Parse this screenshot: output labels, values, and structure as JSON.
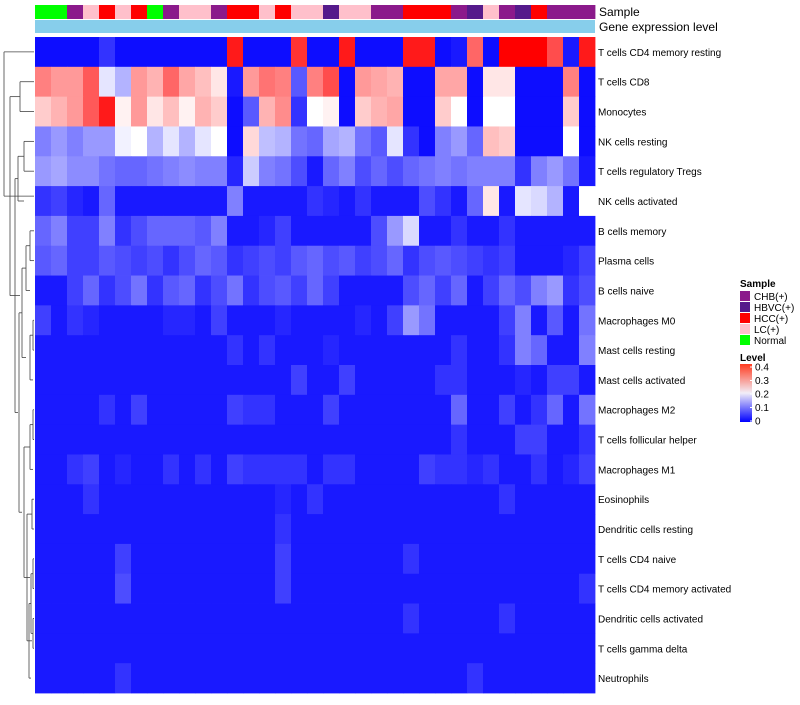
{
  "chart_data": {
    "type": "heatmap",
    "title": "",
    "annotation_tracks": [
      "Sample",
      "Gene expression level"
    ],
    "sample_groups": [
      {
        "name": "CHB(+)",
        "color": "#8b1a8b"
      },
      {
        "name": "HBVC(+)",
        "color": "#551a8b"
      },
      {
        "name": "HCC(+)",
        "color": "#ff0000"
      },
      {
        "name": "LC(+)",
        "color": "#ffc0cb"
      },
      {
        "name": "Normal",
        "color": "#00ff00"
      }
    ],
    "sample_legend_title": "Sample",
    "level_legend_title": "Level",
    "level_ticks": [
      "0.4",
      "0.3",
      "0.2",
      "0.1",
      "0"
    ],
    "color_scale": {
      "min": 0,
      "max": 0.4,
      "low": "#0000ff",
      "mid": "#ffffff",
      "high": "#ff0000"
    },
    "column_samples": [
      "Normal",
      "Normal",
      "CHB(+)",
      "LC(+)",
      "HCC(+)",
      "LC(+)",
      "HCC(+)",
      "Normal",
      "CHB(+)",
      "LC(+)",
      "LC(+)",
      "CHB(+)",
      "HCC(+)",
      "HCC(+)",
      "LC(+)",
      "HCC(+)",
      "LC(+)",
      "LC(+)",
      "HBVC(+)",
      "LC(+)",
      "LC(+)",
      "CHB(+)",
      "CHB(+)",
      "HCC(+)",
      "HCC(+)",
      "HCC(+)",
      "CHB(+)",
      "HBVC(+)",
      "LC(+)",
      "CHB(+)",
      "HBVC(+)",
      "HCC(+)",
      "CHB(+)",
      "CHB(+)",
      "CHB(+)"
    ],
    "gene_expression_track_color": "#87ceeb",
    "rows": [
      "T cells CD4 memory resting",
      "T cells CD8",
      "Monocytes",
      "NK cells resting",
      "T cells regulatory  Tregs",
      "NK cells activated",
      "B cells memory",
      "Plasma cells",
      "B cells naive",
      "Macrophages M0",
      "Mast cells resting",
      "Mast cells activated",
      "Macrophages M2",
      "T cells follicular helper",
      "Macrophages M1",
      "Eosinophils",
      "Dendritic cells resting",
      "T cells CD4 naive",
      "T cells CD4 memory activated",
      "Dendritic cells activated",
      "T cells gamma delta",
      "Neutrophils"
    ],
    "values": [
      [
        0.01,
        0.01,
        0.01,
        0.01,
        0.04,
        0.01,
        0.01,
        0.01,
        0.01,
        0.01,
        0.01,
        0.01,
        0.38,
        0.01,
        0.01,
        0.01,
        0.36,
        0.01,
        0.01,
        0.38,
        0.01,
        0.01,
        0.01,
        0.38,
        0.38,
        0.01,
        0.02,
        0.32,
        0.01,
        0.4,
        0.4,
        0.4,
        0.34,
        0.02,
        0.38
      ],
      [
        0.3,
        0.28,
        0.28,
        0.33,
        0.18,
        0.14,
        0.28,
        0.26,
        0.32,
        0.27,
        0.25,
        0.22,
        0.02,
        0.28,
        0.31,
        0.3,
        0.07,
        0.3,
        0.34,
        0.01,
        0.28,
        0.27,
        0.26,
        0.01,
        0.01,
        0.27,
        0.27,
        0.01,
        0.22,
        0.22,
        0.01,
        0.01,
        0.01,
        0.3,
        0.01
      ],
      [
        0.24,
        0.26,
        0.28,
        0.33,
        0.38,
        0.21,
        0.28,
        0.22,
        0.25,
        0.21,
        0.26,
        0.24,
        0.01,
        0.07,
        0.26,
        0.29,
        0.04,
        0.2,
        0.21,
        0.01,
        0.24,
        0.26,
        0.27,
        0.01,
        0.01,
        0.24,
        0.2,
        0.01,
        0.2,
        0.2,
        0.01,
        0.01,
        0.01,
        0.24,
        0.01
      ],
      [
        0.1,
        0.12,
        0.1,
        0.12,
        0.12,
        0.19,
        0.2,
        0.14,
        0.18,
        0.14,
        0.18,
        0.2,
        0.01,
        0.23,
        0.15,
        0.14,
        0.09,
        0.08,
        0.13,
        0.14,
        0.09,
        0.07,
        0.18,
        0.04,
        0.01,
        0.1,
        0.12,
        0.08,
        0.25,
        0.24,
        0.01,
        0.01,
        0.01,
        0.2,
        0.01
      ],
      [
        0.12,
        0.13,
        0.11,
        0.11,
        0.09,
        0.08,
        0.08,
        0.09,
        0.1,
        0.11,
        0.1,
        0.1,
        0.03,
        0.16,
        0.1,
        0.09,
        0.06,
        0.02,
        0.08,
        0.1,
        0.06,
        0.08,
        0.06,
        0.08,
        0.09,
        0.1,
        0.09,
        0.1,
        0.1,
        0.1,
        0.04,
        0.1,
        0.12,
        0.09,
        0.02
      ],
      [
        0.04,
        0.05,
        0.03,
        0.02,
        0.08,
        0.02,
        0.02,
        0.02,
        0.02,
        0.02,
        0.02,
        0.02,
        0.1,
        0.02,
        0.02,
        0.02,
        0.02,
        0.04,
        0.03,
        0.02,
        0.04,
        0.02,
        0.02,
        0.02,
        0.06,
        0.04,
        0.02,
        0.08,
        0.22,
        0.02,
        0.18,
        0.17,
        0.14,
        0.02,
        0.2
      ],
      [
        0.08,
        0.1,
        0.05,
        0.05,
        0.1,
        0.04,
        0.06,
        0.08,
        0.08,
        0.08,
        0.07,
        0.1,
        0.02,
        0.02,
        0.03,
        0.05,
        0.02,
        0.02,
        0.02,
        0.02,
        0.02,
        0.06,
        0.12,
        0.17,
        0.02,
        0.02,
        0.04,
        0.02,
        0.02,
        0.04,
        0.02,
        0.02,
        0.02,
        0.02,
        0.02
      ],
      [
        0.07,
        0.08,
        0.05,
        0.05,
        0.07,
        0.06,
        0.05,
        0.06,
        0.04,
        0.06,
        0.08,
        0.07,
        0.04,
        0.05,
        0.06,
        0.05,
        0.07,
        0.08,
        0.06,
        0.07,
        0.05,
        0.06,
        0.08,
        0.04,
        0.06,
        0.07,
        0.06,
        0.05,
        0.04,
        0.05,
        0.02,
        0.02,
        0.02,
        0.03,
        0.05
      ],
      [
        0.02,
        0.02,
        0.05,
        0.08,
        0.04,
        0.06,
        0.09,
        0.04,
        0.07,
        0.08,
        0.04,
        0.06,
        0.09,
        0.04,
        0.06,
        0.07,
        0.05,
        0.08,
        0.05,
        0.02,
        0.02,
        0.02,
        0.02,
        0.06,
        0.08,
        0.05,
        0.08,
        0.02,
        0.05,
        0.08,
        0.06,
        0.1,
        0.12,
        0.04,
        0.06
      ],
      [
        0.05,
        0.02,
        0.04,
        0.03,
        0.02,
        0.02,
        0.02,
        0.02,
        0.03,
        0.03,
        0.02,
        0.05,
        0.02,
        0.02,
        0.02,
        0.03,
        0.02,
        0.02,
        0.02,
        0.02,
        0.03,
        0.02,
        0.05,
        0.12,
        0.09,
        0.02,
        0.02,
        0.02,
        0.02,
        0.05,
        0.1,
        0.02,
        0.07,
        0.02,
        0.09
      ],
      [
        0.02,
        0.02,
        0.02,
        0.02,
        0.02,
        0.02,
        0.02,
        0.02,
        0.02,
        0.02,
        0.02,
        0.02,
        0.04,
        0.02,
        0.04,
        0.02,
        0.02,
        0.02,
        0.03,
        0.02,
        0.02,
        0.02,
        0.02,
        0.02,
        0.02,
        0.02,
        0.04,
        0.02,
        0.02,
        0.04,
        0.1,
        0.08,
        0.02,
        0.02,
        0.1
      ],
      [
        0.02,
        0.02,
        0.02,
        0.02,
        0.02,
        0.02,
        0.02,
        0.02,
        0.02,
        0.02,
        0.02,
        0.02,
        0.02,
        0.02,
        0.02,
        0.02,
        0.05,
        0.02,
        0.02,
        0.05,
        0.02,
        0.02,
        0.02,
        0.02,
        0.02,
        0.04,
        0.04,
        0.02,
        0.02,
        0.02,
        0.03,
        0.02,
        0.05,
        0.05,
        0.02
      ],
      [
        0.02,
        0.02,
        0.02,
        0.02,
        0.04,
        0.02,
        0.05,
        0.02,
        0.02,
        0.02,
        0.02,
        0.02,
        0.05,
        0.04,
        0.04,
        0.02,
        0.02,
        0.02,
        0.05,
        0.02,
        0.02,
        0.02,
        0.02,
        0.02,
        0.02,
        0.02,
        0.08,
        0.02,
        0.02,
        0.05,
        0.02,
        0.04,
        0.08,
        0.02,
        0.09
      ],
      [
        0.02,
        0.02,
        0.02,
        0.02,
        0.02,
        0.02,
        0.02,
        0.02,
        0.02,
        0.02,
        0.02,
        0.02,
        0.02,
        0.02,
        0.02,
        0.02,
        0.02,
        0.02,
        0.02,
        0.02,
        0.02,
        0.02,
        0.02,
        0.02,
        0.02,
        0.02,
        0.04,
        0.02,
        0.02,
        0.02,
        0.05,
        0.05,
        0.02,
        0.02,
        0.04
      ],
      [
        0.02,
        0.02,
        0.04,
        0.05,
        0.02,
        0.03,
        0.02,
        0.02,
        0.04,
        0.02,
        0.04,
        0.02,
        0.05,
        0.04,
        0.04,
        0.04,
        0.04,
        0.02,
        0.04,
        0.04,
        0.02,
        0.02,
        0.02,
        0.02,
        0.05,
        0.04,
        0.04,
        0.03,
        0.04,
        0.02,
        0.02,
        0.04,
        0.02,
        0.03,
        0.05
      ],
      [
        0.02,
        0.02,
        0.02,
        0.04,
        0.02,
        0.02,
        0.02,
        0.02,
        0.02,
        0.02,
        0.02,
        0.02,
        0.02,
        0.02,
        0.02,
        0.03,
        0.02,
        0.04,
        0.02,
        0.02,
        0.02,
        0.02,
        0.02,
        0.02,
        0.02,
        0.02,
        0.02,
        0.02,
        0.02,
        0.04,
        0.02,
        0.02,
        0.02,
        0.02,
        0.02
      ],
      [
        0.02,
        0.02,
        0.02,
        0.02,
        0.02,
        0.02,
        0.02,
        0.02,
        0.02,
        0.02,
        0.02,
        0.02,
        0.02,
        0.02,
        0.02,
        0.04,
        0.02,
        0.02,
        0.02,
        0.02,
        0.02,
        0.02,
        0.02,
        0.02,
        0.02,
        0.02,
        0.02,
        0.02,
        0.02,
        0.02,
        0.02,
        0.02,
        0.02,
        0.02,
        0.02
      ],
      [
        0.02,
        0.02,
        0.02,
        0.02,
        0.02,
        0.05,
        0.02,
        0.02,
        0.02,
        0.02,
        0.02,
        0.02,
        0.02,
        0.02,
        0.02,
        0.05,
        0.02,
        0.02,
        0.02,
        0.02,
        0.02,
        0.02,
        0.02,
        0.04,
        0.02,
        0.02,
        0.02,
        0.02,
        0.02,
        0.02,
        0.02,
        0.02,
        0.02,
        0.02,
        0.02
      ],
      [
        0.02,
        0.02,
        0.02,
        0.02,
        0.02,
        0.06,
        0.02,
        0.02,
        0.02,
        0.02,
        0.02,
        0.02,
        0.02,
        0.02,
        0.02,
        0.05,
        0.02,
        0.02,
        0.02,
        0.02,
        0.02,
        0.02,
        0.02,
        0.02,
        0.02,
        0.02,
        0.02,
        0.02,
        0.02,
        0.02,
        0.02,
        0.02,
        0.02,
        0.02,
        0.04
      ],
      [
        0.02,
        0.02,
        0.02,
        0.02,
        0.02,
        0.02,
        0.02,
        0.02,
        0.02,
        0.02,
        0.02,
        0.02,
        0.02,
        0.02,
        0.02,
        0.02,
        0.02,
        0.02,
        0.02,
        0.02,
        0.02,
        0.02,
        0.02,
        0.04,
        0.02,
        0.02,
        0.02,
        0.02,
        0.02,
        0.04,
        0.02,
        0.02,
        0.02,
        0.02,
        0.02
      ],
      [
        0.02,
        0.02,
        0.02,
        0.02,
        0.02,
        0.02,
        0.02,
        0.02,
        0.02,
        0.02,
        0.02,
        0.02,
        0.02,
        0.02,
        0.02,
        0.02,
        0.02,
        0.02,
        0.02,
        0.02,
        0.02,
        0.02,
        0.02,
        0.02,
        0.02,
        0.02,
        0.02,
        0.02,
        0.02,
        0.02,
        0.02,
        0.02,
        0.02,
        0.02,
        0.02
      ],
      [
        0.02,
        0.02,
        0.02,
        0.02,
        0.02,
        0.04,
        0.02,
        0.02,
        0.02,
        0.02,
        0.02,
        0.02,
        0.02,
        0.02,
        0.02,
        0.02,
        0.02,
        0.02,
        0.02,
        0.02,
        0.02,
        0.02,
        0.02,
        0.02,
        0.02,
        0.02,
        0.02,
        0.04,
        0.02,
        0.02,
        0.02,
        0.02,
        0.02,
        0.02,
        0.02
      ]
    ]
  }
}
